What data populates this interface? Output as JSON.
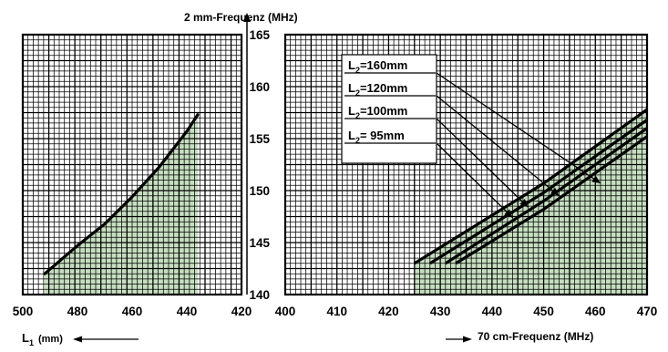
{
  "chart_data": [
    {
      "type": "line",
      "panel": "left",
      "xlabel": "L1 (mm)",
      "xlabel_main": "L",
      "xlabel_sub": "1",
      "xlabel_unit": "(mm)",
      "x_direction": "reversed",
      "xlim": [
        500,
        420
      ],
      "ylim": [
        140,
        165
      ],
      "x_ticks": [
        "500",
        "480",
        "460",
        "440",
        "420"
      ],
      "grid": true,
      "shaded_area": true,
      "series": [
        {
          "x": [
            492,
            480,
            470,
            460,
            450,
            440,
            436
          ],
          "y": [
            142.0,
            144.7,
            146.8,
            149.4,
            152.3,
            155.7,
            157.3
          ]
        }
      ]
    },
    {
      "type": "line",
      "panel": "right",
      "title": "2 mm-Frequenz  (MHz)",
      "xlabel": "70 cm-Frequenz  (MHz)",
      "xlim": [
        400,
        470
      ],
      "ylim": [
        140,
        165
      ],
      "x_ticks": [
        "400",
        "410",
        "420",
        "430",
        "440",
        "450",
        "460",
        "470"
      ],
      "y_ticks": [
        "140",
        "145",
        "150",
        "155",
        "160",
        "165"
      ],
      "grid": true,
      "shaded_area": true,
      "series": [
        {
          "label_main": "L",
          "label_sub": "2",
          "label_rest": "=160mm",
          "x": [
            425,
            450,
            470
          ],
          "y": [
            143,
            150.7,
            157.8
          ]
        },
        {
          "label_main": "L",
          "label_sub": "2",
          "label_rest": "=120mm",
          "x": [
            428,
            450,
            470
          ],
          "y": [
            143,
            149.8,
            156.8
          ]
        },
        {
          "label_main": "L",
          "label_sub": "2",
          "label_rest": "=100mm",
          "x": [
            431,
            450,
            470
          ],
          "y": [
            143,
            149.0,
            156.0
          ]
        },
        {
          "label_main": "L",
          "label_sub": "2",
          "label_rest": "=  95mm",
          "x": [
            433,
            450,
            470
          ],
          "y": [
            143,
            148.2,
            155.2
          ]
        }
      ]
    }
  ]
}
